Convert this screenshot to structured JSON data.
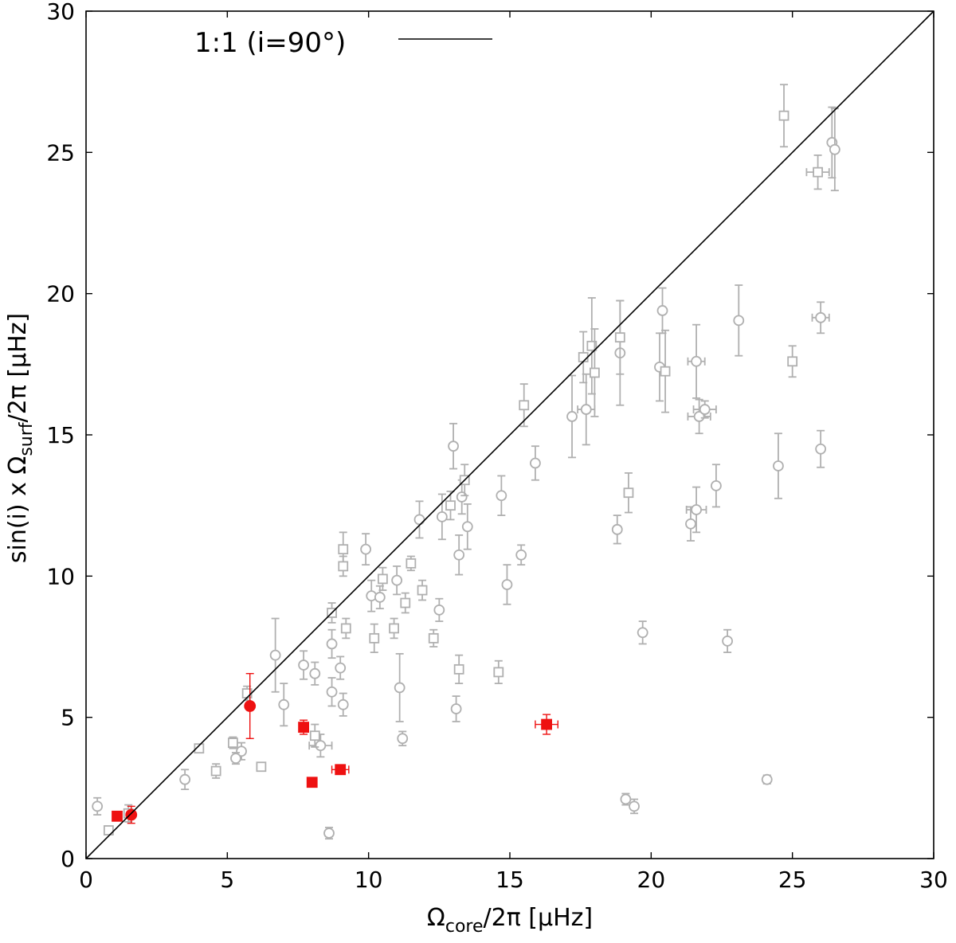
{
  "chart_data": {
    "type": "scatter",
    "title": "",
    "xlabel": {
      "main": "Ω",
      "sub": "core",
      "rest": "/2π [μHz]"
    },
    "ylabel": {
      "main": "sin(i) x Ω",
      "sub": "surf",
      "rest": "/2π [μHz]"
    },
    "xlim": [
      0,
      30
    ],
    "ylim": [
      0,
      30
    ],
    "xticks": [
      "0",
      "5",
      "10",
      "15",
      "20",
      "25",
      "30"
    ],
    "yticks": [
      "0",
      "5",
      "10",
      "15",
      "20",
      "25",
      "30"
    ],
    "grid": false,
    "legend": {
      "position": "top-left",
      "entries": [
        {
          "label": "1:1 (i=90°)"
        }
      ]
    },
    "reference_line": {
      "from": [
        0,
        0
      ],
      "to": [
        30,
        30
      ]
    },
    "colors": {
      "gray": "#b0b0b0",
      "red": "#ee1111",
      "line": "#000000"
    },
    "series": [
      {
        "color": "gray",
        "marker": "circle",
        "filled": false,
        "points": [
          {
            "x": 0.4,
            "y": 1.85,
            "ey": 0.3
          },
          {
            "x": 3.5,
            "y": 2.8,
            "ey": 0.35
          },
          {
            "x": 5.5,
            "y": 3.8,
            "ey": 0.3
          },
          {
            "x": 5.3,
            "y": 3.55,
            "ey": 0.2
          },
          {
            "x": 6.7,
            "y": 7.2,
            "ey": 1.3
          },
          {
            "x": 7.0,
            "y": 5.45,
            "ey": 0.75
          },
          {
            "x": 7.7,
            "y": 6.85,
            "ey": 0.5
          },
          {
            "x": 8.1,
            "y": 6.55,
            "ey": 0.4
          },
          {
            "x": 8.3,
            "y": 4.0,
            "ey": 0.4,
            "ex": 0.4
          },
          {
            "x": 8.6,
            "y": 0.9,
            "ey": 0.2
          },
          {
            "x": 8.7,
            "y": 7.6,
            "ey": 0.5
          },
          {
            "x": 8.7,
            "y": 5.9,
            "ey": 0.5
          },
          {
            "x": 9.0,
            "y": 6.75,
            "ey": 0.4
          },
          {
            "x": 9.1,
            "y": 5.45,
            "ey": 0.4
          },
          {
            "x": 9.9,
            "y": 10.95,
            "ey": 0.55
          },
          {
            "x": 10.1,
            "y": 9.3,
            "ey": 0.55
          },
          {
            "x": 10.4,
            "y": 9.25,
            "ey": 0.4
          },
          {
            "x": 11.0,
            "y": 9.85,
            "ey": 0.5
          },
          {
            "x": 11.1,
            "y": 6.05,
            "ey": 1.2
          },
          {
            "x": 11.2,
            "y": 4.25,
            "ey": 0.25
          },
          {
            "x": 11.8,
            "y": 12.0,
            "ey": 0.65
          },
          {
            "x": 12.5,
            "y": 8.8,
            "ey": 0.4
          },
          {
            "x": 12.6,
            "y": 12.1,
            "ey": 0.8
          },
          {
            "x": 13.0,
            "y": 14.6,
            "ey": 0.8
          },
          {
            "x": 13.1,
            "y": 5.3,
            "ey": 0.45
          },
          {
            "x": 13.2,
            "y": 10.75,
            "ey": 0.7
          },
          {
            "x": 13.3,
            "y": 12.8,
            "ey": 0.6
          },
          {
            "x": 13.5,
            "y": 11.75,
            "ey": 0.8
          },
          {
            "x": 14.7,
            "y": 12.85,
            "ey": 0.7
          },
          {
            "x": 14.9,
            "y": 9.7,
            "ey": 0.7
          },
          {
            "x": 15.4,
            "y": 10.75,
            "ey": 0.35
          },
          {
            "x": 15.9,
            "y": 14.0,
            "ey": 0.6
          },
          {
            "x": 17.2,
            "y": 15.65,
            "ey": 1.45
          },
          {
            "x": 17.7,
            "y": 15.9,
            "ey": 1.25,
            "ex": 0.3
          },
          {
            "x": 18.8,
            "y": 11.65,
            "ey": 0.5
          },
          {
            "x": 18.9,
            "y": 17.9,
            "ey": 1.85
          },
          {
            "x": 20.3,
            "y": 17.4,
            "ey": 1.2
          },
          {
            "x": 20.4,
            "y": 19.4,
            "ey": 0.8
          },
          {
            "x": 21.4,
            "y": 11.85,
            "ey": 0.6
          },
          {
            "x": 21.6,
            "y": 17.6,
            "ey": 1.3,
            "ex": 0.3
          },
          {
            "x": 21.7,
            "y": 15.65,
            "ey": 0.6,
            "ex": 0.4
          },
          {
            "x": 21.9,
            "y": 15.9,
            "ey": 0.3,
            "ex": 0.4
          },
          {
            "x": 22.3,
            "y": 13.2,
            "ey": 0.75
          },
          {
            "x": 23.1,
            "y": 19.05,
            "ey": 1.25
          },
          {
            "x": 19.1,
            "y": 2.1,
            "ey": 0.2
          },
          {
            "x": 19.4,
            "y": 1.85,
            "ey": 0.25
          },
          {
            "x": 19.7,
            "y": 8.0,
            "ey": 0.4
          },
          {
            "x": 22.7,
            "y": 7.7,
            "ey": 0.4
          },
          {
            "x": 24.1,
            "y": 2.8,
            "ey": 0.15
          },
          {
            "x": 24.5,
            "y": 13.9,
            "ey": 1.15
          },
          {
            "x": 26.0,
            "y": 14.5,
            "ey": 0.65
          },
          {
            "x": 26.0,
            "y": 19.15,
            "ey": 0.55,
            "ex": 0.3
          },
          {
            "x": 26.4,
            "y": 25.35,
            "ey": 1.25
          },
          {
            "x": 26.5,
            "y": 25.1,
            "ey": 1.45
          },
          {
            "x": 21.6,
            "y": 12.35,
            "ey": 0.8,
            "ex": 0.35
          }
        ]
      },
      {
        "color": "gray",
        "marker": "square",
        "filled": false,
        "points": [
          {
            "x": 0.8,
            "y": 1.0,
            "ey": 0.15
          },
          {
            "x": 1.5,
            "y": 1.6,
            "ey": 0.3
          },
          {
            "x": 4.0,
            "y": 3.9,
            "ey": 0.15
          },
          {
            "x": 4.6,
            "y": 3.1,
            "ey": 0.25
          },
          {
            "x": 5.2,
            "y": 4.1,
            "ey": 0.2
          },
          {
            "x": 6.2,
            "y": 3.25,
            "ey": 0.15
          },
          {
            "x": 5.7,
            "y": 5.85,
            "ey": 0.25
          },
          {
            "x": 8.7,
            "y": 8.7,
            "ey": 0.35
          },
          {
            "x": 9.1,
            "y": 10.95,
            "ey": 0.6
          },
          {
            "x": 9.1,
            "y": 10.35,
            "ey": 0.35
          },
          {
            "x": 9.2,
            "y": 8.15,
            "ey": 0.35
          },
          {
            "x": 10.2,
            "y": 7.8,
            "ey": 0.5
          },
          {
            "x": 10.5,
            "y": 9.9,
            "ey": 0.4
          },
          {
            "x": 10.9,
            "y": 8.15,
            "ey": 0.35
          },
          {
            "x": 11.3,
            "y": 9.05,
            "ey": 0.35
          },
          {
            "x": 11.5,
            "y": 10.45,
            "ey": 0.25
          },
          {
            "x": 11.9,
            "y": 9.5,
            "ey": 0.35
          },
          {
            "x": 12.3,
            "y": 7.8,
            "ey": 0.3
          },
          {
            "x": 12.9,
            "y": 12.5,
            "ey": 0.5
          },
          {
            "x": 13.2,
            "y": 6.7,
            "ey": 0.5
          },
          {
            "x": 13.4,
            "y": 13.4,
            "ey": 0.55
          },
          {
            "x": 14.6,
            "y": 6.6,
            "ey": 0.4
          },
          {
            "x": 15.5,
            "y": 16.05,
            "ey": 0.75
          },
          {
            "x": 17.6,
            "y": 17.75,
            "ey": 0.9
          },
          {
            "x": 17.9,
            "y": 18.15,
            "ey": 1.7
          },
          {
            "x": 18.0,
            "y": 17.2,
            "ey": 1.55
          },
          {
            "x": 18.9,
            "y": 18.45,
            "ey": 1.3
          },
          {
            "x": 19.2,
            "y": 12.95,
            "ey": 0.7
          },
          {
            "x": 20.5,
            "y": 17.25,
            "ey": 1.45
          },
          {
            "x": 24.7,
            "y": 26.3,
            "ey": 1.1
          },
          {
            "x": 25.0,
            "y": 17.6,
            "ey": 0.55
          },
          {
            "x": 25.9,
            "y": 24.3,
            "ey": 0.6,
            "ex": 0.4
          },
          {
            "x": 8.1,
            "y": 4.35,
            "ey": 0.4
          }
        ]
      },
      {
        "color": "red",
        "marker": "circle",
        "filled": true,
        "points": [
          {
            "x": 1.6,
            "y": 1.55,
            "ey": 0.3
          },
          {
            "x": 5.8,
            "y": 5.4,
            "ey": 1.15
          }
        ]
      },
      {
        "color": "red",
        "marker": "square",
        "filled": true,
        "points": [
          {
            "x": 1.1,
            "y": 1.5,
            "ey": 0.15
          },
          {
            "x": 7.7,
            "y": 4.65,
            "ey": 0.25
          },
          {
            "x": 8.0,
            "y": 2.7,
            "ey": 0.15
          },
          {
            "x": 9.0,
            "y": 3.15,
            "ey": 0.15,
            "ex": 0.3
          },
          {
            "x": 16.3,
            "y": 4.75,
            "ey": 0.35,
            "ex": 0.4
          }
        ]
      }
    ]
  }
}
